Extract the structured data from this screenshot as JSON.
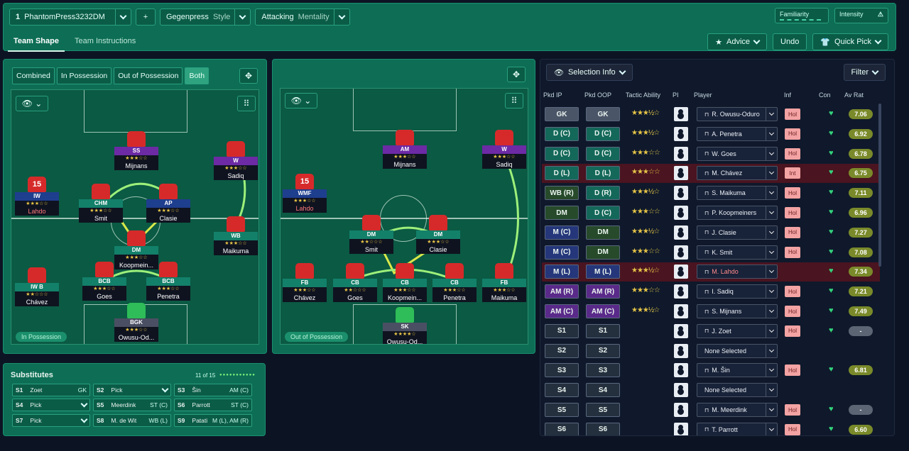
{
  "header": {
    "formation": "PhantomPress3232DM",
    "formation_num": "1",
    "style_value": "Gegenpress",
    "style_label": "Style",
    "mentality_value": "Attacking",
    "mentality_label": "Mentality",
    "familiarity": "Familiarity",
    "intensity": "Intensity",
    "plus": "+"
  },
  "tabs": [
    "Team Shape",
    "Team Instructions"
  ],
  "actions": {
    "advice": "Advice",
    "undo": "Undo",
    "quick_pick": "Quick Pick"
  },
  "pitch_tabs": [
    "Combined",
    "In Possession",
    "Out of Possession",
    "Both"
  ],
  "in_possession": {
    "badge": "In Possession",
    "players": [
      {
        "role": "SS",
        "name": "Mijnans",
        "stars": "★★★☆☆"
      },
      {
        "role": "W",
        "name": "Sadiq",
        "stars": "★★★☆☆"
      },
      {
        "role": "IW",
        "name": "Lahdo",
        "stars": "★★★☆☆",
        "num": "15"
      },
      {
        "role": "CHM",
        "name": "Smit",
        "stars": "★★★☆☆"
      },
      {
        "role": "AP",
        "name": "Clasie",
        "stars": "★★★☆☆"
      },
      {
        "role": "WB",
        "name": "Maikuma",
        "stars": "★★★☆☆"
      },
      {
        "role": "DM",
        "name": "Koopmein...",
        "stars": "★★★☆☆"
      },
      {
        "role": "IW B",
        "name": "Chávez",
        "stars": "★★☆☆☆"
      },
      {
        "role": "BCB",
        "name": "Goes",
        "stars": "★★★☆☆"
      },
      {
        "role": "BCB",
        "name": "Penetra",
        "stars": "★★★☆☆"
      },
      {
        "role": "BGK",
        "name": "Owusu-Od...",
        "stars": "★★★☆☆"
      }
    ]
  },
  "out_possession": {
    "badge": "Out of Possession",
    "players": [
      {
        "role": "AM",
        "name": "Mijnans",
        "stars": "★★★☆☆"
      },
      {
        "role": "W",
        "name": "Sadiq",
        "stars": "★★★☆☆"
      },
      {
        "role": "WMF",
        "name": "Lahdo",
        "stars": "★★★☆☆",
        "num": "15"
      },
      {
        "role": "DM",
        "name": "Smit",
        "stars": "★★☆☆☆"
      },
      {
        "role": "DM",
        "name": "Clasie",
        "stars": "★★★☆☆"
      },
      {
        "role": "FB",
        "name": "Chávez",
        "stars": "★★★☆☆"
      },
      {
        "role": "CB",
        "name": "Goes",
        "stars": "★★☆☆☆"
      },
      {
        "role": "CB",
        "name": "Koopmein...",
        "stars": "★★★☆☆"
      },
      {
        "role": "CB",
        "name": "Penetra",
        "stars": "★★★☆☆"
      },
      {
        "role": "FB",
        "name": "Maikuma",
        "stars": "★★★☆☆"
      },
      {
        "role": "SK",
        "name": "Owusu-Od...",
        "stars": "★★★★☆"
      }
    ]
  },
  "selection": {
    "title": "Selection Info",
    "filter": "Filter",
    "headers": [
      "Pkd IP",
      "Pkd OOP",
      "Tactic Ability",
      "PI",
      "Player",
      "Inf",
      "Con",
      "Av Rat"
    ],
    "rows": [
      {
        "ip": "GK",
        "oop": "GK",
        "stars": "★★★½☆",
        "player": "R. Owusu-Oduro",
        "inf": "Hol",
        "rat": "7.06",
        "c1": "g",
        "c2": "g"
      },
      {
        "ip": "D (C)",
        "oop": "D (C)",
        "stars": "★★★½☆",
        "player": "A. Penetra",
        "inf": "Hol",
        "rat": "6.92",
        "c1": "d",
        "c2": "d"
      },
      {
        "ip": "D (C)",
        "oop": "D (C)",
        "stars": "★★★☆☆",
        "player": "W. Goes",
        "inf": "Hol",
        "rat": "6.78",
        "c1": "d",
        "c2": "d"
      },
      {
        "ip": "D (L)",
        "oop": "D (L)",
        "stars": "★★★☆☆",
        "player": "M. Chávez",
        "inf": "Int",
        "rat": "6.75",
        "c1": "d",
        "c2": "d",
        "hl": true
      },
      {
        "ip": "WB (R)",
        "oop": "D (R)",
        "stars": "★★★½☆",
        "player": "S. Maikuma",
        "inf": "Hol",
        "rat": "7.11",
        "c1": "w",
        "c2": "d"
      },
      {
        "ip": "DM",
        "oop": "D (C)",
        "stars": "★★★☆☆",
        "player": "P. Koopmeiners",
        "inf": "Hol",
        "rat": "6.96",
        "c1": "w",
        "c2": "d"
      },
      {
        "ip": "M (C)",
        "oop": "DM",
        "stars": "★★★½☆",
        "player": "J. Clasie",
        "inf": "Hol",
        "rat": "7.27",
        "c1": "m",
        "c2": "w"
      },
      {
        "ip": "M (C)",
        "oop": "DM",
        "stars": "★★★☆☆",
        "player": "K. Smit",
        "inf": "Hol",
        "rat": "7.08",
        "c1": "m",
        "c2": "w"
      },
      {
        "ip": "M (L)",
        "oop": "M (L)",
        "stars": "★★★½☆",
        "player": "M. Lahdo",
        "inf": "",
        "rat": "7.34",
        "c1": "m",
        "c2": "m",
        "hl": true
      },
      {
        "ip": "AM (R)",
        "oop": "AM (R)",
        "stars": "★★★☆☆",
        "player": "I. Sadiq",
        "inf": "Hol",
        "rat": "7.21",
        "c1": "a",
        "c2": "a"
      },
      {
        "ip": "AM (C)",
        "oop": "AM (C)",
        "stars": "★★★½☆",
        "player": "S. Mijnans",
        "inf": "Hol",
        "rat": "7.49",
        "c1": "a",
        "c2": "a"
      },
      {
        "ip": "S1",
        "oop": "S1",
        "stars": "",
        "player": "J. Zoet",
        "inf": "Hol",
        "rat": "-",
        "c1": "s",
        "c2": "s"
      },
      {
        "ip": "S2",
        "oop": "S2",
        "stars": "",
        "player": "None Selected",
        "inf": "",
        "rat": "",
        "c1": "s",
        "c2": "s"
      },
      {
        "ip": "S3",
        "oop": "S3",
        "stars": "",
        "player": "M. Šin",
        "inf": "Hol",
        "rat": "6.81",
        "c1": "s",
        "c2": "s"
      },
      {
        "ip": "S4",
        "oop": "S4",
        "stars": "",
        "player": "None Selected",
        "inf": "",
        "rat": "",
        "c1": "s",
        "c2": "s"
      },
      {
        "ip": "S5",
        "oop": "S5",
        "stars": "",
        "player": "M. Meerdink",
        "inf": "Hol",
        "rat": "-",
        "c1": "s",
        "c2": "s"
      },
      {
        "ip": "S6",
        "oop": "S6",
        "stars": "",
        "player": "T. Parrott",
        "inf": "Hol",
        "rat": "6.60",
        "c1": "s",
        "c2": "s"
      }
    ]
  },
  "subs": {
    "title": "Substitutes",
    "count": "11 of 15",
    "items": [
      {
        "slot": "S1",
        "name": "Zoet",
        "pos": "GK"
      },
      {
        "slot": "S2",
        "name": "Pick",
        "pos": ""
      },
      {
        "slot": "S3",
        "name": "Šin",
        "pos": "AM (C)"
      },
      {
        "slot": "S4",
        "name": "Pick",
        "pos": ""
      },
      {
        "slot": "S5",
        "name": "Meerdink",
        "pos": "ST (C)"
      },
      {
        "slot": "S6",
        "name": "Parrott",
        "pos": "ST (C)"
      },
      {
        "slot": "S7",
        "name": "Pick",
        "pos": ""
      },
      {
        "slot": "S8",
        "name": "M. de Wit",
        "pos": "WB (L)"
      },
      {
        "slot": "S9",
        "name": "Patati",
        "pos": "M (L), AM (R)"
      }
    ]
  }
}
